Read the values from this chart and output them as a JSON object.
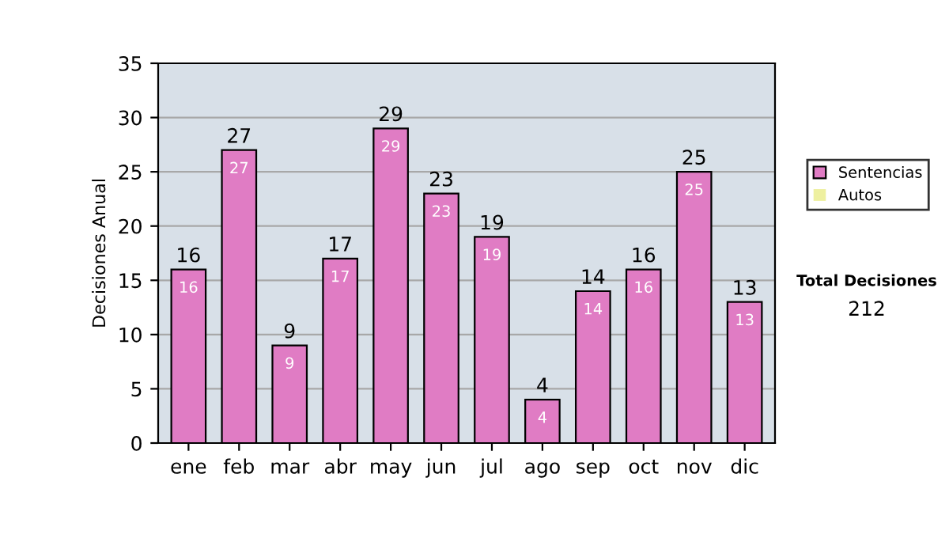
{
  "chart_data": {
    "type": "bar",
    "stacked": true,
    "ylabel": "Decisiones Anual",
    "categories": [
      "ene",
      "feb",
      "mar",
      "abr",
      "may",
      "jun",
      "jul",
      "ago",
      "sep",
      "oct",
      "nov",
      "dic"
    ],
    "series": [
      {
        "name": "Sentencias",
        "color": "#e07cc4",
        "values": [
          16,
          27,
          9,
          17,
          29,
          23,
          19,
          4,
          14,
          16,
          25,
          13
        ],
        "value_labels": [
          "16",
          "27",
          "9",
          "17",
          "29",
          "23",
          "19",
          "4",
          "14",
          "16",
          "25",
          "13"
        ]
      },
      {
        "name": "Autos",
        "color": "#eef0a0",
        "values": [
          0,
          0,
          0,
          0,
          0,
          0,
          0,
          0,
          0,
          0,
          0,
          0
        ]
      }
    ],
    "totals": [
      "16",
      "27",
      "9",
      "17",
      "29",
      "23",
      "19",
      "4",
      "14",
      "16",
      "25",
      "13"
    ],
    "ylim": [
      0,
      35
    ],
    "yticks": [
      0,
      5,
      10,
      15,
      20,
      25,
      30,
      35
    ],
    "grid": "y",
    "legend": "right",
    "annotations": [
      "Total Decisiones",
      "212"
    ]
  }
}
